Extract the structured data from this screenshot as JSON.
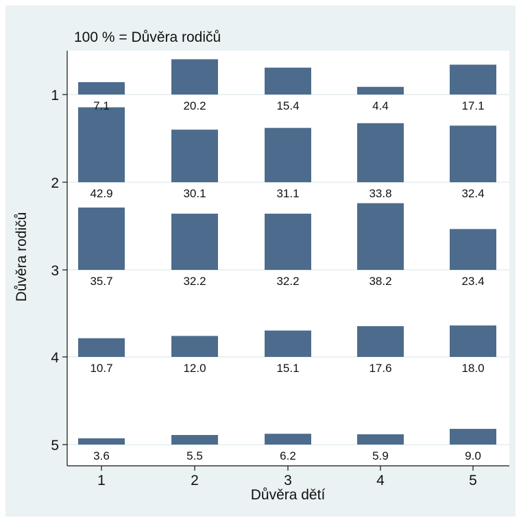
{
  "chart_data": {
    "type": "bar",
    "title": "100 % = Důvěra rodičů",
    "xlabel": "Důvěra dětí",
    "ylabel": "Důvěra rodičů",
    "x_categories": [
      "1",
      "2",
      "3",
      "4",
      "5"
    ],
    "y_categories": [
      "1",
      "2",
      "3",
      "4",
      "5"
    ],
    "rows": [
      {
        "y": "1",
        "values": [
          7.1,
          20.2,
          15.4,
          4.4,
          17.1
        ],
        "labels": [
          "7.1",
          "20.2",
          "15.4",
          "4.4",
          "17.1"
        ]
      },
      {
        "y": "2",
        "values": [
          42.9,
          30.1,
          31.1,
          33.8,
          32.4
        ],
        "labels": [
          "42.9",
          "30.1",
          "31.1",
          "33.8",
          "32.4"
        ]
      },
      {
        "y": "3",
        "values": [
          35.7,
          32.2,
          32.2,
          38.2,
          23.4
        ],
        "labels": [
          "35.7",
          "32.2",
          "32.2",
          "38.2",
          "23.4"
        ]
      },
      {
        "y": "4",
        "values": [
          10.7,
          12.0,
          15.1,
          17.6,
          18.0
        ],
        "labels": [
          "10.7",
          "12.0",
          "15.1",
          "17.6",
          "18.0"
        ]
      },
      {
        "y": "5",
        "values": [
          3.6,
          5.5,
          6.2,
          5.9,
          9.0
        ],
        "labels": [
          "3.6",
          "5.5",
          "6.2",
          "5.9",
          "9.0"
        ]
      }
    ],
    "grid": true,
    "colors": {
      "outer_background": "#eaf2f3",
      "plot_background": "#ffffff",
      "bar": "#4d6c8d",
      "gridline": "#eaf2f3"
    }
  }
}
